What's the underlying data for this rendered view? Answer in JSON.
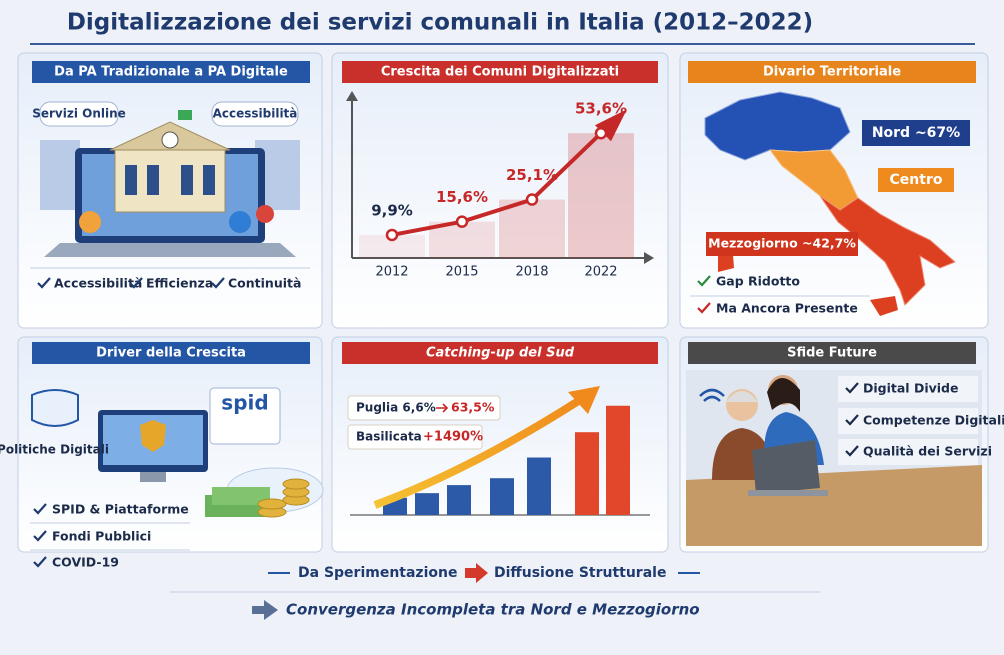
{
  "title": "Digitalizzazione dei servizi comunali in Italia (2012–2022)",
  "panels": [
    {
      "header": "Da PA Tradizionale a PA Digitale",
      "bubbles": [
        "Servizi Online",
        "Accessibilità"
      ],
      "checks": [
        "Accessibilità",
        "Efficienza",
        "Continuità"
      ]
    },
    {
      "header": "Crescita dei Comuni Digitalizzati"
    },
    {
      "header": "Divario Territoriale",
      "regions": [
        "Nord ~67%",
        "Centro",
        "Mezzogiorno ~42,7%"
      ],
      "checks": [
        "Gap Ridotto",
        "Ma Ancora Presente"
      ]
    },
    {
      "header": "Driver della Crescita",
      "caption": "Politiche Digitali",
      "logo": "spid",
      "checks": [
        "SPID & Piattaforme",
        "Fondi Pubblici",
        "COVID-19"
      ]
    },
    {
      "header": "Catching-up del Sud",
      "notes": [
        {
          "label": "Puglia 6,6%",
          "target": "63,5%"
        },
        {
          "label": "Basilicata",
          "target": "+1490%"
        }
      ]
    },
    {
      "header": "Sfide Future",
      "checks": [
        "Digital Divide",
        "Competenze Digitali",
        "Qualità dei Servizi"
      ]
    }
  ],
  "footer": {
    "from": "Da Sperimentazione",
    "to": "Diffusione Strutturale",
    "conclusion": "Convergenza Incompleta tra Nord e Mezzogiorno"
  },
  "chart_data": [
    {
      "type": "line",
      "categories": [
        "2012",
        "2015",
        "2018",
        "2022"
      ],
      "values": [
        9.9,
        15.6,
        25.1,
        53.6
      ],
      "value_labels": [
        "9,9%",
        "15,6%",
        "25,1%",
        "53,6%"
      ],
      "ylim": [
        0,
        70
      ],
      "color": "#c62828"
    },
    {
      "type": "bar",
      "values": [
        15,
        19,
        26,
        32,
        50,
        72,
        95
      ],
      "ylim": [
        0,
        100
      ],
      "colors": [
        "#2c5aa8",
        "#2c5aa8",
        "#2c5aa8",
        "#2c5aa8",
        "#2c5aa8",
        "#e2472b",
        "#e2472b"
      ]
    }
  ]
}
